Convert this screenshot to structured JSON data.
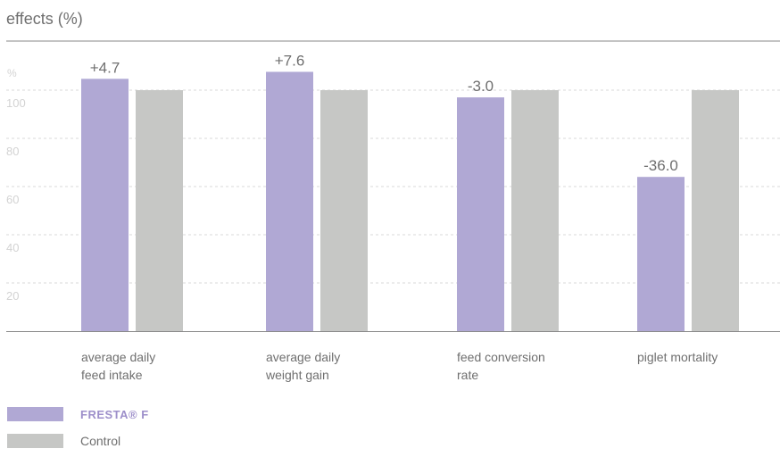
{
  "chart_data": {
    "type": "bar",
    "title": "effects (%)",
    "yunit": "%",
    "ylim": [
      0,
      120
    ],
    "yticks": [
      20,
      40,
      60,
      80,
      100
    ],
    "grid": true,
    "categories": [
      [
        "average daily",
        "feed intake"
      ],
      [
        "average daily",
        "weight gain"
      ],
      [
        "feed conversion",
        "rate"
      ],
      [
        "piglet mortality"
      ]
    ],
    "series": [
      {
        "name": "FRESTA® F",
        "color": "#b0a8d4",
        "values": [
          104.7,
          107.6,
          97.0,
          64.0
        ],
        "labels": [
          "+4.7",
          "+7.6",
          "-3.0",
          "-36.0"
        ]
      },
      {
        "name": "Control",
        "color": "#c6c7c5",
        "values": [
          100,
          100,
          100,
          100
        ]
      }
    ],
    "legend": "bottom-left"
  }
}
